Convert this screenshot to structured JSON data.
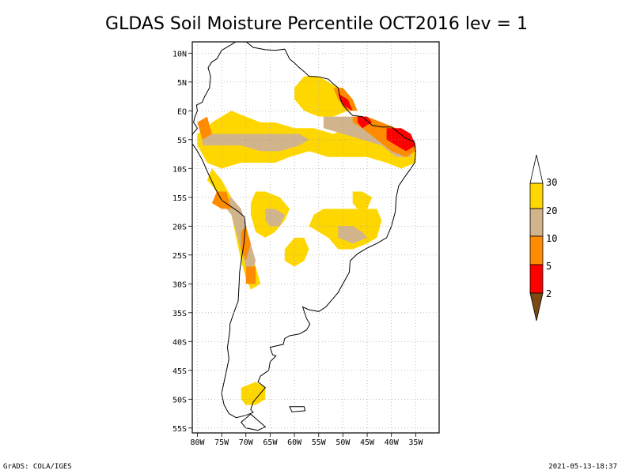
{
  "title": "GLDAS Soil Moisture Percentile OCT2016 lev = 1",
  "footer": {
    "left": "GrADS: COLA/IGES",
    "right": "2021-05-13-18:37"
  },
  "colors": {
    "brown": "#7b4a12",
    "red": "#ff0000",
    "orange": "#ff8c00",
    "tan": "#d2b48c",
    "gold": "#ffd700",
    "white": "#ffffff"
  },
  "lat_labels": [
    "10N",
    "5N",
    "EQ",
    "5S",
    "10S",
    "15S",
    "20S",
    "25S",
    "30S",
    "35S",
    "40S",
    "45S",
    "50S",
    "55S"
  ],
  "lon_labels": [
    "80W",
    "75W",
    "70W",
    "65W",
    "60W",
    "55W",
    "50W",
    "45W",
    "40W",
    "35W"
  ],
  "colorbar": {
    "labels": [
      "30",
      "20",
      "10",
      "5",
      "2"
    ]
  },
  "chart_data": {
    "type": "heatmap",
    "title": "GLDAS Soil Moisture Percentile OCT2016 lev = 1",
    "lat_range": [
      -56,
      12
    ],
    "lon_range": [
      -81,
      -34
    ],
    "levels": [
      2,
      5,
      10,
      20,
      30
    ],
    "level_colors": [
      "#7b4a12",
      "#ff0000",
      "#ff8c00",
      "#d2b48c",
      "#ffd700",
      "#ffffff"
    ],
    "regions": [
      {
        "band": "gold",
        "pts": [
          [
            -77,
            -2
          ],
          [
            -75,
            -1
          ],
          [
            -73,
            0
          ],
          [
            -70,
            -1
          ],
          [
            -67,
            -2
          ],
          [
            -64,
            -2
          ],
          [
            -60,
            -3
          ],
          [
            -56,
            -3
          ],
          [
            -52,
            -4
          ],
          [
            -49,
            -3
          ],
          [
            -46,
            -2
          ],
          [
            -44,
            -3
          ],
          [
            -41,
            -3
          ],
          [
            -37,
            -5
          ],
          [
            -35,
            -6
          ],
          [
            -35,
            -9
          ],
          [
            -38,
            -10
          ],
          [
            -41,
            -9
          ],
          [
            -45,
            -8
          ],
          [
            -49,
            -8
          ],
          [
            -53,
            -8
          ],
          [
            -57,
            -7
          ],
          [
            -61,
            -8
          ],
          [
            -64,
            -9
          ],
          [
            -67,
            -9
          ],
          [
            -71,
            -9
          ],
          [
            -75,
            -10
          ],
          [
            -78,
            -9
          ],
          [
            -80,
            -6
          ],
          [
            -80,
            -4
          ],
          [
            -78,
            -3
          ]
        ]
      },
      {
        "band": "gold",
        "pts": [
          [
            -60,
            4
          ],
          [
            -58,
            6
          ],
          [
            -55,
            6
          ],
          [
            -53,
            5
          ],
          [
            -51,
            4
          ],
          [
            -50,
            2
          ],
          [
            -49,
            0
          ],
          [
            -52,
            -1
          ],
          [
            -55,
            -1
          ],
          [
            -58,
            0
          ],
          [
            -60,
            2
          ]
        ]
      },
      {
        "band": "gold",
        "pts": [
          [
            -77,
            -10
          ],
          [
            -75,
            -12
          ],
          [
            -73,
            -15
          ],
          [
            -71,
            -18
          ],
          [
            -70,
            -21
          ],
          [
            -69,
            -24
          ],
          [
            -68,
            -27
          ],
          [
            -67,
            -30
          ],
          [
            -69,
            -31
          ],
          [
            -70,
            -29
          ],
          [
            -71,
            -26
          ],
          [
            -72,
            -22
          ],
          [
            -73,
            -18
          ],
          [
            -75,
            -15
          ],
          [
            -78,
            -12
          ]
        ]
      },
      {
        "band": "gold",
        "pts": [
          [
            -68,
            -14
          ],
          [
            -66,
            -14
          ],
          [
            -63,
            -15
          ],
          [
            -61,
            -17
          ],
          [
            -62,
            -19
          ],
          [
            -64,
            -21
          ],
          [
            -66,
            -22
          ],
          [
            -68,
            -21
          ],
          [
            -69,
            -18
          ],
          [
            -69,
            -16
          ]
        ]
      },
      {
        "band": "gold",
        "pts": [
          [
            -56,
            -18
          ],
          [
            -54,
            -17
          ],
          [
            -51,
            -17
          ],
          [
            -49,
            -17
          ],
          [
            -46,
            -17
          ],
          [
            -43,
            -17
          ],
          [
            -42,
            -19
          ],
          [
            -43,
            -22
          ],
          [
            -45,
            -23
          ],
          [
            -48,
            -24
          ],
          [
            -51,
            -24
          ],
          [
            -53,
            -22
          ],
          [
            -55,
            -21
          ],
          [
            -57,
            -20
          ]
        ]
      },
      {
        "band": "gold",
        "pts": [
          [
            -60,
            -22
          ],
          [
            -58,
            -22
          ],
          [
            -57,
            -24
          ],
          [
            -58,
            -26
          ],
          [
            -60,
            -27
          ],
          [
            -62,
            -26
          ],
          [
            -62,
            -24
          ]
        ]
      },
      {
        "band": "gold",
        "pts": [
          [
            -71,
            -48
          ],
          [
            -68,
            -47
          ],
          [
            -66,
            -48
          ],
          [
            -66,
            -50
          ],
          [
            -68,
            -51
          ],
          [
            -70,
            -51
          ],
          [
            -71,
            -50
          ]
        ]
      },
      {
        "band": "gold",
        "pts": [
          [
            -48,
            -14
          ],
          [
            -46,
            -14
          ],
          [
            -44,
            -15
          ],
          [
            -45,
            -17
          ],
          [
            -47,
            -17
          ],
          [
            -48,
            -16
          ]
        ]
      },
      {
        "band": "tan",
        "pts": [
          [
            -79,
            -4
          ],
          [
            -77,
            -4
          ],
          [
            -74,
            -4
          ],
          [
            -71,
            -4
          ],
          [
            -67,
            -4
          ],
          [
            -63,
            -4
          ],
          [
            -59,
            -4
          ],
          [
            -57,
            -5
          ],
          [
            -59,
            -6
          ],
          [
            -63,
            -7
          ],
          [
            -67,
            -7
          ],
          [
            -71,
            -6
          ],
          [
            -74,
            -6
          ],
          [
            -77,
            -6
          ],
          [
            -79,
            -6
          ]
        ]
      },
      {
        "band": "tan",
        "pts": [
          [
            -54,
            -1
          ],
          [
            -50,
            -1
          ],
          [
            -46,
            -1
          ],
          [
            -43,
            -2
          ],
          [
            -39,
            -3
          ],
          [
            -36,
            -5
          ],
          [
            -36,
            -8
          ],
          [
            -39,
            -8
          ],
          [
            -42,
            -6
          ],
          [
            -46,
            -5
          ],
          [
            -50,
            -4
          ],
          [
            -54,
            -3
          ]
        ]
      },
      {
        "band": "tan",
        "pts": [
          [
            -73,
            -15
          ],
          [
            -71,
            -17
          ],
          [
            -70,
            -20
          ],
          [
            -69,
            -23
          ],
          [
            -68,
            -26
          ],
          [
            -69,
            -29
          ],
          [
            -70,
            -27
          ],
          [
            -71,
            -24
          ],
          [
            -72,
            -21
          ],
          [
            -73,
            -18
          ],
          [
            -75,
            -16
          ]
        ]
      },
      {
        "band": "tan",
        "pts": [
          [
            -66,
            -17
          ],
          [
            -64,
            -17
          ],
          [
            -62,
            -18
          ],
          [
            -63,
            -20
          ],
          [
            -65,
            -20
          ],
          [
            -66,
            -19
          ]
        ]
      },
      {
        "band": "tan",
        "pts": [
          [
            -51,
            -20
          ],
          [
            -48,
            -20
          ],
          [
            -46,
            -21
          ],
          [
            -45,
            -22
          ],
          [
            -48,
            -23
          ],
          [
            -51,
            -22
          ]
        ]
      },
      {
        "band": "orange",
        "pts": [
          [
            -52,
            4
          ],
          [
            -50,
            4
          ],
          [
            -48,
            2
          ],
          [
            -47,
            0
          ],
          [
            -49,
            0
          ],
          [
            -51,
            2
          ]
        ]
      },
      {
        "band": "orange",
        "pts": [
          [
            -48,
            -1
          ],
          [
            -45,
            -1
          ],
          [
            -42,
            -2
          ],
          [
            -39,
            -3
          ],
          [
            -36,
            -4
          ],
          [
            -35,
            -7
          ],
          [
            -37,
            -8
          ],
          [
            -40,
            -7
          ],
          [
            -43,
            -5
          ],
          [
            -46,
            -3
          ],
          [
            -48,
            -2
          ]
        ]
      },
      {
        "band": "orange",
        "pts": [
          [
            -76,
            -14
          ],
          [
            -74,
            -14
          ],
          [
            -73,
            -17
          ],
          [
            -75,
            -17
          ],
          [
            -77,
            -16
          ]
        ]
      },
      {
        "band": "orange",
        "pts": [
          [
            -70,
            -20
          ],
          [
            -69,
            -23
          ],
          [
            -70,
            -26
          ],
          [
            -71,
            -24
          ],
          [
            -71,
            -21
          ]
        ]
      },
      {
        "band": "orange",
        "pts": [
          [
            -70,
            -27
          ],
          [
            -68,
            -27
          ],
          [
            -68,
            -30
          ],
          [
            -70,
            -30
          ]
        ]
      },
      {
        "band": "orange",
        "pts": [
          [
            -80,
            -2
          ],
          [
            -78,
            -1
          ],
          [
            -77,
            -4
          ],
          [
            -79,
            -5
          ]
        ]
      },
      {
        "band": "red",
        "pts": [
          [
            -51,
            3
          ],
          [
            -49,
            2
          ],
          [
            -48,
            0
          ],
          [
            -50,
            1
          ]
        ]
      },
      {
        "band": "red",
        "pts": [
          [
            -41,
            -3
          ],
          [
            -38,
            -3
          ],
          [
            -36,
            -4
          ],
          [
            -35,
            -6
          ],
          [
            -37,
            -7
          ],
          [
            -39,
            -6
          ],
          [
            -41,
            -5
          ]
        ]
      },
      {
        "band": "red",
        "pts": [
          [
            -47,
            -1
          ],
          [
            -45,
            -1
          ],
          [
            -44,
            -2
          ],
          [
            -46,
            -3
          ],
          [
            -47,
            -2
          ]
        ]
      }
    ]
  }
}
